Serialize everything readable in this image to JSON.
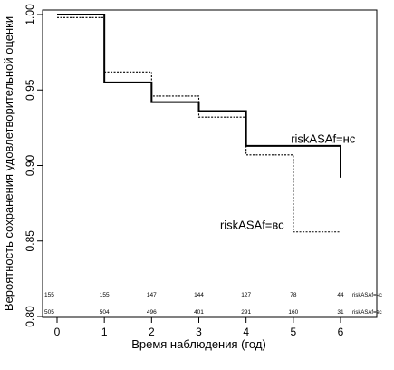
{
  "chart_data": {
    "type": "line",
    "title": "",
    "xlabel": "Время наблюдения (год)",
    "ylabel": "Вероятность сохранения удовлетворительной оценки",
    "xlim": [
      0,
      6
    ],
    "ylim": [
      0.8,
      1.0
    ],
    "xticks": [
      "0",
      "1",
      "2",
      "3",
      "4",
      "5",
      "6"
    ],
    "yticks": [
      "0.80",
      "0.85",
      "0.90",
      "0.95",
      "1.00"
    ],
    "grid": false,
    "legend": "none",
    "series": [
      {
        "name": "riskASAf=нс",
        "style": "solid",
        "color": "#000000",
        "steps": [
          [
            0,
            1.0
          ],
          [
            1,
            0.955
          ],
          [
            2,
            0.942
          ],
          [
            3,
            0.936
          ],
          [
            4,
            0.913
          ],
          [
            5,
            0.913
          ],
          [
            6,
            0.913
          ]
        ],
        "final_drop": 0.892
      },
      {
        "name": "riskASAf=вс",
        "style": "dotted",
        "color": "#000000",
        "steps": [
          [
            0,
            0.998
          ],
          [
            1,
            0.962
          ],
          [
            2,
            0.946
          ],
          [
            3,
            0.932
          ],
          [
            4,
            0.907
          ],
          [
            5,
            0.856
          ],
          [
            6,
            0.856
          ]
        ]
      }
    ],
    "annotations": [
      {
        "text": "riskASAf=нс",
        "x": 4.95,
        "y": 0.915
      },
      {
        "text": "riskASAf=вс",
        "x": 3.45,
        "y": 0.858
      }
    ],
    "risk_table": [
      {
        "name": "riskASAf=нс",
        "counts": [
          "155",
          "155",
          "147",
          "144",
          "127",
          "78",
          "44"
        ]
      },
      {
        "name": "riskASAf=вс",
        "counts": [
          "505",
          "504",
          "496",
          "401",
          "291",
          "160",
          "31"
        ]
      }
    ]
  }
}
